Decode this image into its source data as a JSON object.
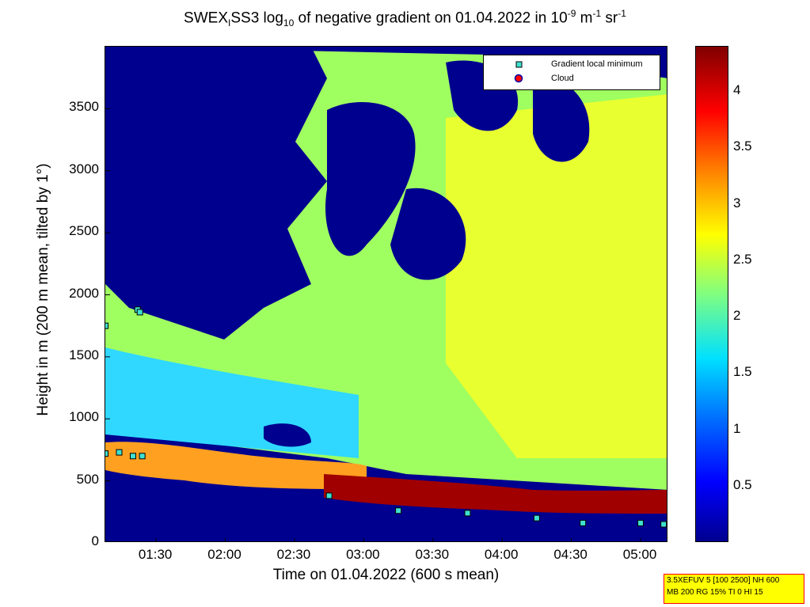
{
  "title_parts": {
    "a": "SWEX",
    "sub1": "I",
    "b": "SS3 log",
    "sub2": "10",
    "c": " of negative gradient on 01.04.2022 in 10",
    "sup1": "-9",
    "d": " m",
    "sup2": "-1",
    "e": " sr",
    "sup3": "-1"
  },
  "xlabel": "Time on 01.04.2022 (600 s mean)",
  "ylabel": "Height in m (200 m mean, tilted by 1°)",
  "legend": {
    "entries": [
      {
        "label": "Gradient local minimum",
        "marker": "square",
        "color": "#40e0d0"
      },
      {
        "label": "Cloud",
        "marker": "circle",
        "color": "#ff0000"
      }
    ]
  },
  "infobox": {
    "line1": "3.5XEFUV 5 [100 2500] NH 600",
    "line2": "MB 200 RG 15% TI 0 HI 15"
  },
  "colors": {
    "colormap": [
      "#00008f",
      "#0000ff",
      "#0070ff",
      "#00e0ff",
      "#80ff80",
      "#ffff00",
      "#ff8000",
      "#ff0000",
      "#800000"
    ]
  },
  "chart_data": {
    "type": "heatmap",
    "title": "SWEX_ISS3 log10 of negative gradient on 01.04.2022 in 10^-9 m^-1 sr^-1",
    "xlabel": "Time on 01.04.2022 (600 s mean)",
    "ylabel": "Height in m (200 m mean, tilted by 1°)",
    "x_ticks": [
      "01:30",
      "02:00",
      "02:30",
      "03:00",
      "03:30",
      "04:00",
      "04:30",
      "05:00"
    ],
    "y_ticks": [
      "0",
      "500",
      "1000",
      "1500",
      "2000",
      "2500",
      "3000",
      "3500"
    ],
    "y_tick_values": [
      0,
      500,
      1000,
      1500,
      2000,
      2500,
      3000,
      3500
    ],
    "ylim": [
      0,
      4000
    ],
    "xlim": [
      "01:08",
      "05:12"
    ],
    "colorbar": {
      "ticks": [
        "0.5",
        "1",
        "1.5",
        "2",
        "2.5",
        "3",
        "3.5",
        "4"
      ],
      "tick_values": [
        0.5,
        1,
        1.5,
        2,
        2.5,
        3,
        3.5,
        4
      ],
      "range": [
        0,
        4.4
      ],
      "colormap": "jet"
    },
    "series": [
      {
        "name": "Gradient local minimum",
        "points": [
          {
            "time": "01:08",
            "height": 1750
          },
          {
            "time": "01:22",
            "height": 1880
          },
          {
            "time": "01:23",
            "height": 1860
          },
          {
            "time": "01:08",
            "height": 720
          },
          {
            "time": "01:14",
            "height": 730
          },
          {
            "time": "01:20",
            "height": 700
          },
          {
            "time": "01:24",
            "height": 700
          },
          {
            "time": "02:45",
            "height": 380
          },
          {
            "time": "03:15",
            "height": 260
          },
          {
            "time": "03:45",
            "height": 240
          },
          {
            "time": "04:15",
            "height": 200
          },
          {
            "time": "04:35",
            "height": 160
          },
          {
            "time": "05:00",
            "height": 160
          },
          {
            "time": "05:10",
            "height": 150
          }
        ]
      },
      {
        "name": "Cloud",
        "points": []
      }
    ]
  }
}
